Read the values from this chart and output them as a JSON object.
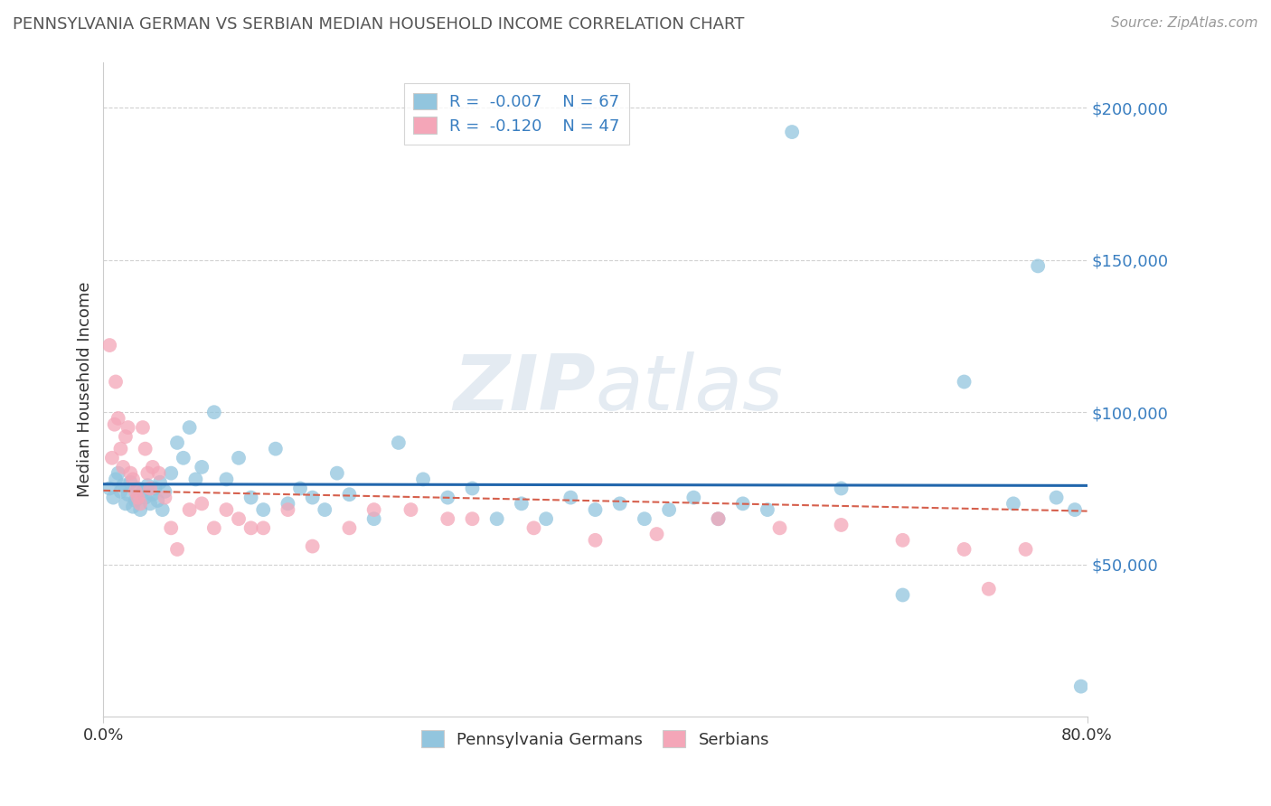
{
  "title": "PENNSYLVANIA GERMAN VS SERBIAN MEDIAN HOUSEHOLD INCOME CORRELATION CHART",
  "source": "Source: ZipAtlas.com",
  "ylabel": "Median Household Income",
  "r1": -0.007,
  "n1": 67,
  "r2": -0.12,
  "n2": 47,
  "legend1": "Pennsylvania Germans",
  "legend2": "Serbians",
  "color_blue": "#92c5de",
  "color_pink": "#f4a6b8",
  "trend_blue": "#2166ac",
  "trend_pink": "#d6604d",
  "xmin": 0.0,
  "xmax": 0.8,
  "ymin": 0,
  "ymax": 215000,
  "blue_x": [
    0.005,
    0.008,
    0.01,
    0.012,
    0.014,
    0.016,
    0.018,
    0.02,
    0.022,
    0.024,
    0.026,
    0.028,
    0.03,
    0.032,
    0.034,
    0.036,
    0.038,
    0.04,
    0.042,
    0.044,
    0.046,
    0.048,
    0.05,
    0.055,
    0.06,
    0.065,
    0.07,
    0.075,
    0.08,
    0.09,
    0.1,
    0.11,
    0.12,
    0.13,
    0.14,
    0.15,
    0.16,
    0.17,
    0.18,
    0.19,
    0.2,
    0.22,
    0.24,
    0.26,
    0.28,
    0.3,
    0.32,
    0.34,
    0.36,
    0.38,
    0.4,
    0.42,
    0.44,
    0.46,
    0.48,
    0.5,
    0.52,
    0.54,
    0.56,
    0.6,
    0.65,
    0.7,
    0.74,
    0.76,
    0.775,
    0.79,
    0.795
  ],
  "blue_y": [
    75000,
    72000,
    78000,
    80000,
    74000,
    76000,
    70000,
    73000,
    77000,
    69000,
    71000,
    75000,
    68000,
    74000,
    72000,
    76000,
    70000,
    73000,
    75000,
    71000,
    77000,
    68000,
    74000,
    80000,
    90000,
    85000,
    95000,
    78000,
    82000,
    100000,
    78000,
    85000,
    72000,
    68000,
    88000,
    70000,
    75000,
    72000,
    68000,
    80000,
    73000,
    65000,
    90000,
    78000,
    72000,
    75000,
    65000,
    70000,
    65000,
    72000,
    68000,
    70000,
    65000,
    68000,
    72000,
    65000,
    70000,
    68000,
    192000,
    75000,
    40000,
    110000,
    70000,
    148000,
    72000,
    68000,
    10000
  ],
  "pink_x": [
    0.005,
    0.007,
    0.009,
    0.01,
    0.012,
    0.014,
    0.016,
    0.018,
    0.02,
    0.022,
    0.024,
    0.026,
    0.028,
    0.03,
    0.032,
    0.034,
    0.036,
    0.038,
    0.04,
    0.045,
    0.05,
    0.055,
    0.06,
    0.07,
    0.08,
    0.09,
    0.1,
    0.11,
    0.12,
    0.13,
    0.15,
    0.17,
    0.2,
    0.22,
    0.25,
    0.28,
    0.3,
    0.35,
    0.4,
    0.45,
    0.5,
    0.55,
    0.6,
    0.65,
    0.7,
    0.72,
    0.75
  ],
  "pink_y": [
    122000,
    85000,
    96000,
    110000,
    98000,
    88000,
    82000,
    92000,
    95000,
    80000,
    78000,
    74000,
    72000,
    70000,
    95000,
    88000,
    80000,
    75000,
    82000,
    80000,
    72000,
    62000,
    55000,
    68000,
    70000,
    62000,
    68000,
    65000,
    62000,
    62000,
    68000,
    56000,
    62000,
    68000,
    68000,
    65000,
    65000,
    62000,
    58000,
    60000,
    65000,
    62000,
    63000,
    58000,
    55000,
    42000,
    55000
  ]
}
